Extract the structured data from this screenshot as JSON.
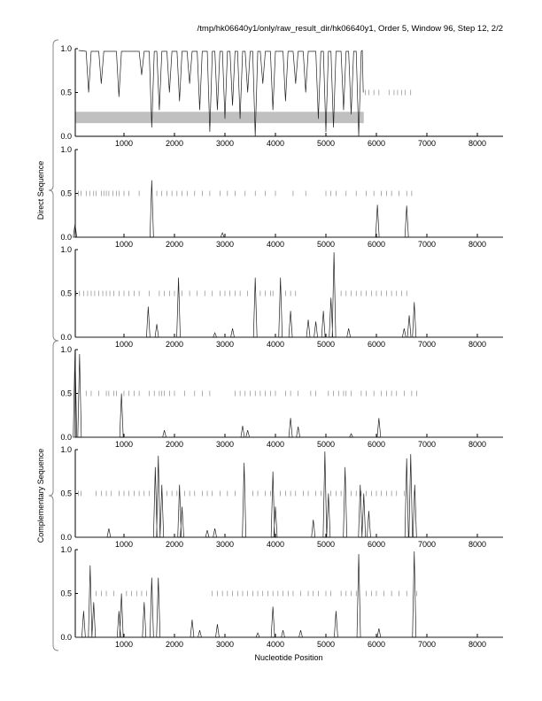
{
  "title": "/tmp/hk06640y1/only/raw_result_dir/hk06640y1, Order 5, Window 96, Step 12, 2/2",
  "chart_data": {
    "type": "line",
    "xlabel": "Nucleotide Position",
    "xlim": [
      0,
      8500
    ],
    "ylim": [
      0,
      1
    ],
    "xticks": [
      1000,
      2000,
      3000,
      4000,
      5000,
      6000,
      7000,
      8000
    ],
    "yticks": [
      "0.0",
      "0.5",
      "1.0"
    ],
    "group_labels": [
      "Direct Sequence",
      "Complementary Sequence"
    ],
    "panels": [
      {
        "name": "summary",
        "baseline": 1,
        "dips": [
          [
            300,
            0.5
          ],
          [
            550,
            0.6
          ],
          [
            900,
            0.45
          ],
          [
            1350,
            0.7
          ],
          [
            1550,
            0.1
          ],
          [
            1700,
            0.3
          ],
          [
            1900,
            0.5
          ],
          [
            2100,
            0.4
          ],
          [
            2300,
            0.6
          ],
          [
            2500,
            0.3
          ],
          [
            2700,
            0.05
          ],
          [
            2850,
            0.3
          ],
          [
            3000,
            0.2
          ],
          [
            3150,
            0.35
          ],
          [
            3300,
            0.2
          ],
          [
            3450,
            0.5
          ],
          [
            3600,
            0.0
          ],
          [
            3750,
            0.6
          ],
          [
            3950,
            0.3
          ],
          [
            4200,
            0.4
          ],
          [
            4400,
            0.6
          ],
          [
            4600,
            0.5
          ],
          [
            4850,
            0.2
          ],
          [
            5000,
            0.05
          ],
          [
            5150,
            0.1
          ],
          [
            5350,
            0.3
          ],
          [
            5500,
            0.25
          ],
          [
            5650,
            0.0
          ]
        ],
        "gray_bar": [
          0,
          5750,
          0.15,
          0.28
        ],
        "ticks": [
          5780,
          5850,
          5950,
          6050,
          6250,
          6350,
          6420,
          6500,
          6570,
          6680
        ]
      },
      {
        "name": "direct-frame-1",
        "peaks": [
          [
            30,
            0.15
          ],
          [
            1550,
            0.65
          ],
          [
            2950,
            0.05
          ],
          [
            6020,
            0.37
          ],
          [
            6600,
            0.36
          ]
        ],
        "ticks": [
          100,
          150,
          250,
          320,
          400,
          450,
          550,
          600,
          650,
          700,
          780,
          850,
          900,
          1000,
          1100,
          1300,
          1650,
          1750,
          1850,
          1950,
          2050,
          2150,
          2250,
          2400,
          2550,
          2700,
          2900,
          3050,
          3200,
          3400,
          3600,
          3800,
          4000,
          4350,
          4600,
          5000,
          5100,
          5200,
          5400,
          5600,
          5800,
          5950,
          6100,
          6200,
          6300,
          6450,
          6600,
          6700
        ]
      },
      {
        "name": "direct-frame-2",
        "peaks": [
          [
            1480,
            0.35
          ],
          [
            1650,
            0.15
          ],
          [
            2080,
            0.68
          ],
          [
            2800,
            0.05
          ],
          [
            3150,
            0.1
          ],
          [
            3600,
            0.68
          ],
          [
            4100,
            0.68
          ],
          [
            4300,
            0.3
          ],
          [
            4650,
            0.2
          ],
          [
            4800,
            0.18
          ],
          [
            4950,
            0.3
          ],
          [
            5100,
            0.45
          ],
          [
            5160,
            0.97
          ],
          [
            5450,
            0.1
          ],
          [
            6550,
            0.1
          ],
          [
            6650,
            0.25
          ],
          [
            6750,
            0.4
          ]
        ],
        "ticks": [
          50,
          120,
          200,
          280,
          350,
          420,
          500,
          580,
          650,
          720,
          800,
          900,
          1000,
          1100,
          1200,
          1300,
          1500,
          1700,
          1800,
          1900,
          2000,
          2150,
          2300,
          2450,
          2600,
          2750,
          2900,
          3000,
          3100,
          3200,
          3300,
          3450,
          3700,
          3800,
          3900,
          3950,
          4200,
          4300,
          4400,
          5300,
          5400,
          5500,
          5600,
          5700,
          5800,
          5900,
          6000,
          6100,
          6200,
          6300,
          6400,
          6500,
          6600
        ]
      },
      {
        "name": "complement-frame-1",
        "peaks": [
          [
            30,
            1.0
          ],
          [
            120,
            0.95
          ],
          [
            950,
            0.5
          ],
          [
            1800,
            0.08
          ],
          [
            3350,
            0.13
          ],
          [
            3450,
            0.08
          ],
          [
            4300,
            0.22
          ],
          [
            4450,
            0.12
          ],
          [
            5500,
            0.04
          ],
          [
            6050,
            0.22
          ]
        ],
        "ticks": [
          250,
          350,
          500,
          650,
          700,
          800,
          850,
          1000,
          1100,
          1200,
          1300,
          1500,
          1600,
          1700,
          1750,
          1800,
          1900,
          2000,
          2200,
          2400,
          2550,
          2700,
          3200,
          3300,
          3400,
          3500,
          3600,
          3700,
          3800,
          3900,
          4000,
          4200,
          4300,
          4450,
          4700,
          4800,
          5050,
          5150,
          5250,
          5350,
          5400,
          5500,
          5700,
          5800,
          5950,
          6100,
          6200,
          6300,
          6400,
          6550,
          6700,
          6800
        ]
      },
      {
        "name": "complement-frame-2",
        "peaks": [
          [
            700,
            0.1
          ],
          [
            1620,
            0.8
          ],
          [
            1680,
            0.93
          ],
          [
            1750,
            0.6
          ],
          [
            2100,
            0.6
          ],
          [
            2150,
            0.35
          ],
          [
            2650,
            0.08
          ],
          [
            2800,
            0.1
          ],
          [
            3380,
            0.85
          ],
          [
            3950,
            0.75
          ],
          [
            4000,
            0.35
          ],
          [
            4750,
            0.2
          ],
          [
            4980,
            0.98
          ],
          [
            5050,
            0.5
          ],
          [
            5380,
            0.8
          ],
          [
            5680,
            0.6
          ],
          [
            5750,
            0.5
          ],
          [
            5850,
            0.3
          ],
          [
            6600,
            0.9
          ],
          [
            6680,
            0.95
          ],
          [
            6760,
            0.6
          ]
        ],
        "ticks": [
          100,
          150,
          450,
          550,
          650,
          750,
          900,
          1000,
          1100,
          1200,
          1300,
          1400,
          1500,
          1850,
          1950,
          2050,
          2200,
          2300,
          2400,
          2550,
          2650,
          2750,
          2900,
          3050,
          3200,
          3550,
          3650,
          3800,
          3900,
          4100,
          4200,
          4300,
          4400,
          4550,
          4650,
          4800,
          4900,
          5100,
          5200,
          5300,
          5500,
          5600,
          5700,
          5800,
          5900,
          6000,
          6100,
          6200,
          6300,
          6400,
          6550,
          6750
        ]
      },
      {
        "name": "complement-frame-3",
        "peaks": [
          [
            200,
            0.3
          ],
          [
            330,
            0.82
          ],
          [
            400,
            0.4
          ],
          [
            900,
            0.3
          ],
          [
            950,
            0.5
          ],
          [
            1400,
            0.4
          ],
          [
            1550,
            0.68
          ],
          [
            1680,
            0.68
          ],
          [
            2350,
            0.2
          ],
          [
            2500,
            0.08
          ],
          [
            2850,
            0.15
          ],
          [
            3650,
            0.05
          ],
          [
            3950,
            0.35
          ],
          [
            4150,
            0.08
          ],
          [
            4500,
            0.08
          ],
          [
            5200,
            0.3
          ],
          [
            5650,
            0.95
          ],
          [
            6050,
            0.1
          ],
          [
            6750,
            0.98
          ]
        ],
        "ticks": [
          450,
          550,
          650,
          800,
          1050,
          1150,
          1250,
          1350,
          1450,
          2750,
          2850,
          2950,
          3050,
          3150,
          3250,
          3350,
          3450,
          3550,
          3650,
          3750,
          3850,
          3950,
          4050,
          4150,
          4250,
          4350,
          4500,
          4650,
          4750,
          4850,
          5000,
          5100,
          5300,
          5400,
          5500,
          5600,
          5800,
          5900,
          6000,
          6150,
          6300,
          6450,
          6600,
          6800
        ]
      }
    ]
  }
}
